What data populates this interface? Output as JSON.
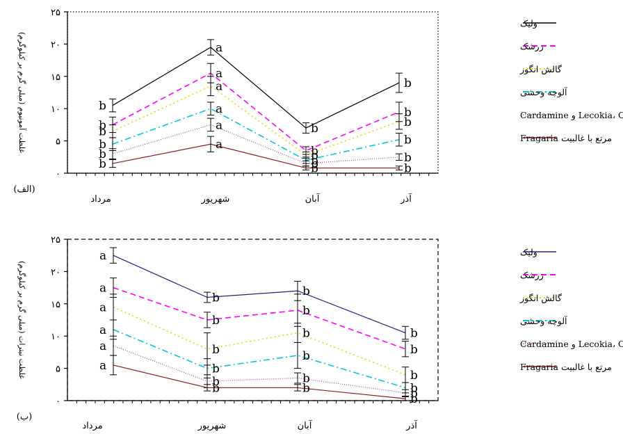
{
  "chart_data": [
    {
      "type": "line",
      "panel_label": "(الف)",
      "ylabel": "غلظت آمونیوم (میلی گرم بر کیلوگرم)",
      "ylim": [
        0,
        25
      ],
      "yticks": [
        0,
        5,
        10,
        15,
        20,
        25
      ],
      "ytick_labels": [
        "۰",
        "۵",
        "۱۰",
        "۱۵",
        "۲۰",
        "۲۵"
      ],
      "categories": [
        "مرداد",
        "شهریور",
        "آبان",
        "آذر"
      ],
      "border": "dotted",
      "series": [
        {
          "name": "ولیک",
          "color": "#000000",
          "dash": "",
          "width": 1.2,
          "values": [
            10.5,
            19.5,
            7.0,
            14.0
          ],
          "errors": [
            1.0,
            1.2,
            0.8,
            1.5
          ],
          "letters": [
            "b",
            "a",
            "b",
            "b"
          ]
        },
        {
          "name": "زرشک",
          "color": "#ff00ff",
          "dash": "8,5",
          "width": 1.6,
          "values": [
            7.5,
            15.5,
            3.5,
            9.5
          ],
          "errors": [
            1.2,
            1.5,
            0.6,
            1.5
          ],
          "letters": [
            "b",
            "a",
            "b",
            "b"
          ]
        },
        {
          "name": "گالش انگور",
          "color": "#e5d800",
          "dash": "2,4",
          "width": 1.6,
          "values": [
            6.5,
            13.5,
            2.8,
            8.0
          ],
          "errors": [
            1.0,
            1.5,
            0.5,
            1.2
          ],
          "letters": [
            "b",
            "a",
            "b",
            "b"
          ]
        },
        {
          "name": "آلوچه وحشی",
          "color": "#00c8d8",
          "dash": "9,4,2,4",
          "width": 1.6,
          "values": [
            4.5,
            10.0,
            2.0,
            5.2
          ],
          "errors": [
            1.0,
            1.0,
            0.5,
            1.0
          ],
          "letters": [
            "b",
            "a",
            "b",
            "b"
          ]
        },
        {
          "name": "مرتع با غالبیت Lecokia، Orchis و Cardamine",
          "color": "#a040a0",
          "dash": "1,2",
          "width": 1.2,
          "values": [
            3.0,
            7.5,
            1.5,
            2.5
          ],
          "errors": [
            0.8,
            1.0,
            0.4,
            0.5
          ],
          "letters": [
            "b",
            "a",
            "b",
            "b"
          ]
        },
        {
          "name": "مرتع با غالبیت Fragaria",
          "color": "#8b1a1a",
          "dash": "",
          "width": 1.2,
          "values": [
            1.5,
            4.5,
            0.8,
            0.8
          ],
          "errors": [
            0.6,
            1.2,
            0.3,
            0.3
          ],
          "letters": [
            "b",
            "a",
            "b",
            "b"
          ]
        }
      ]
    },
    {
      "type": "line",
      "panel_label": "(ب)",
      "ylabel": "غلظت نیترات (میلی گرم بر کیلوگرم)",
      "ylim": [
        0,
        25
      ],
      "yticks": [
        0,
        5,
        10,
        15,
        20,
        25
      ],
      "ytick_labels": [
        "۰",
        "۵",
        "۱۰",
        "۱۵",
        "۲۰",
        "۲۵"
      ],
      "categories": [
        "مرداد",
        "شهریور",
        "آبان",
        "آذر"
      ],
      "border": "dashed",
      "series": [
        {
          "name": "ولیک",
          "color": "#1a237e",
          "dash": "",
          "width": 1.2,
          "values": [
            22.5,
            16.0,
            17.0,
            10.5
          ],
          "errors": [
            1.2,
            0.8,
            1.5,
            1.0
          ],
          "letters": [
            "a",
            "b",
            "b",
            "b"
          ]
        },
        {
          "name": "زرشک",
          "color": "#ff00ff",
          "dash": "8,5",
          "width": 1.6,
          "values": [
            17.5,
            12.5,
            14.0,
            8.0
          ],
          "errors": [
            1.5,
            1.2,
            2.5,
            1.2
          ],
          "letters": [
            "a",
            "b",
            "b",
            "b"
          ]
        },
        {
          "name": "گالش انگور",
          "color": "#e5d800",
          "dash": "2,4",
          "width": 1.6,
          "values": [
            14.5,
            8.0,
            10.5,
            4.0
          ],
          "errors": [
            2.0,
            2.5,
            1.5,
            1.2
          ],
          "letters": [
            "a",
            "b",
            "b",
            "b"
          ]
        },
        {
          "name": "آلوچه وحشی",
          "color": "#00c8d8",
          "dash": "9,4,2,4",
          "width": 1.6,
          "values": [
            11.0,
            5.0,
            7.0,
            2.0
          ],
          "errors": [
            1.5,
            1.5,
            2.0,
            0.8
          ],
          "letters": [
            "a",
            "b",
            "b",
            "b"
          ]
        },
        {
          "name": "مرتع با غالبیت Lecokia، Orchis و Cardamine",
          "color": "#a040a0",
          "dash": "1,2",
          "width": 1.2,
          "values": [
            8.5,
            3.0,
            3.5,
            1.2
          ],
          "errors": [
            1.5,
            1.0,
            0.8,
            0.5
          ],
          "letters": [
            "a",
            "b",
            "b",
            "b"
          ]
        },
        {
          "name": "مرتع با غالبیت Fragaria",
          "color": "#8b1a1a",
          "dash": "",
          "width": 1.2,
          "values": [
            5.5,
            2.0,
            2.0,
            0.3
          ],
          "errors": [
            1.5,
            0.5,
            0.5,
            0.3
          ],
          "letters": [
            "a",
            "b",
            "b",
            "b"
          ]
        }
      ]
    }
  ]
}
